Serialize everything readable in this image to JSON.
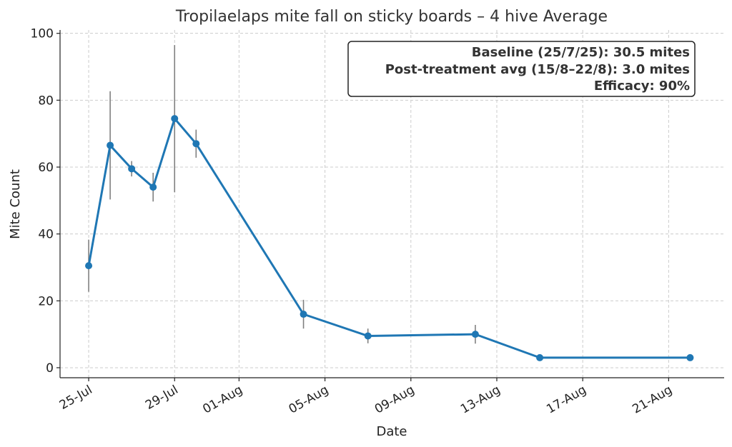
{
  "chart_data": {
    "type": "line",
    "title": "Tropilaelaps mite fall on sticky boards – 4 hive Average",
    "xlabel": "Date",
    "ylabel": "Mite Count",
    "ylim": [
      -3,
      101
    ],
    "y_ticks": [
      0,
      20,
      40,
      60,
      80,
      100
    ],
    "x_tick_labels": [
      "25-Jul",
      "29-Jul",
      "01-Aug",
      "05-Aug",
      "09-Aug",
      "13-Aug",
      "17-Aug",
      "21-Aug"
    ],
    "x_tick_dates": [
      "2025-07-25",
      "2025-07-29",
      "2025-08-01",
      "2025-08-05",
      "2025-08-09",
      "2025-08-13",
      "2025-08-17",
      "2025-08-21"
    ],
    "xlim": [
      "2025-07-23 16:00",
      "2025-08-23 14:00"
    ],
    "grid": true,
    "series": [
      {
        "color": "#1f77b4",
        "points": [
          {
            "x": "2025-07-25",
            "y": 30.5,
            "err": 7.8
          },
          {
            "x": "2025-07-26",
            "y": 66.5,
            "err": 16.2
          },
          {
            "x": "2025-07-27",
            "y": 59.5,
            "err": 2.3
          },
          {
            "x": "2025-07-28",
            "y": 54.0,
            "err": 4.3
          },
          {
            "x": "2025-07-29",
            "y": 74.5,
            "err": 22.0
          },
          {
            "x": "2025-07-30",
            "y": 67.0,
            "err": 4.2
          },
          {
            "x": "2025-08-04",
            "y": 16.0,
            "err": 4.3
          },
          {
            "x": "2025-08-07",
            "y": 9.5,
            "err": 2.2
          },
          {
            "x": "2025-08-12",
            "y": 10.0,
            "err": 2.8
          },
          {
            "x": "2025-08-15",
            "y": 3.0,
            "err": 0.5
          },
          {
            "x": "2025-08-22",
            "y": 3.0,
            "err": 0.8
          }
        ]
      }
    ],
    "annotation": {
      "lines": [
        "Baseline (25/7/25): 30.5 mites",
        "Post-treatment avg (15/8–22/8): 3.0 mites",
        "Efficacy: 90%"
      ],
      "placement": "top-right"
    }
  }
}
